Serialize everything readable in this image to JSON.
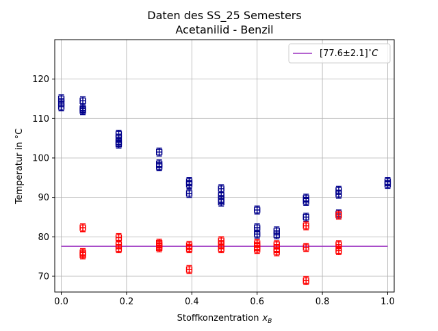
{
  "chart_data": {
    "type": "scatter",
    "title": [
      "Daten des SS_25 Semesters",
      "Acetanilid - Benzil"
    ],
    "xlabel": "Stoffkonzentration",
    "xlabel_var": "x",
    "xlabel_sub": "B",
    "ylabel": "Temperatur in °C",
    "xlim": [
      -0.02,
      1.02
    ],
    "ylim": [
      66,
      130
    ],
    "xticks": [
      0.0,
      0.2,
      0.4,
      0.6,
      0.8,
      1.0
    ],
    "xtick_labels": [
      "0.0",
      "0.2",
      "0.4",
      "0.6",
      "0.8",
      "1.0"
    ],
    "yticks": [
      70,
      80,
      90,
      100,
      110,
      120
    ],
    "ytick_labels": [
      "70",
      "80",
      "90",
      "100",
      "110",
      "120"
    ],
    "grid": true,
    "legend_position": "top-right",
    "colors": {
      "upper": "#00008b",
      "lower": "#ff0000",
      "line": "#9b30c0",
      "grid": "#b0b0b0"
    },
    "xerr": 0.008,
    "yerr": 1.0,
    "series": [
      {
        "key": "upper",
        "points": [
          {
            "x": 0.0,
            "y": 115.0
          },
          {
            "x": 0.0,
            "y": 114.0
          },
          {
            "x": 0.0,
            "y": 113.0
          },
          {
            "x": 0.066,
            "y": 114.5
          },
          {
            "x": 0.066,
            "y": 112.5
          },
          {
            "x": 0.066,
            "y": 112.0
          },
          {
            "x": 0.176,
            "y": 106.0
          },
          {
            "x": 0.176,
            "y": 105.0
          },
          {
            "x": 0.176,
            "y": 104.0
          },
          {
            "x": 0.176,
            "y": 103.5
          },
          {
            "x": 0.3,
            "y": 101.5
          },
          {
            "x": 0.3,
            "y": 98.5
          },
          {
            "x": 0.3,
            "y": 97.8
          },
          {
            "x": 0.392,
            "y": 94.0
          },
          {
            "x": 0.392,
            "y": 93.3
          },
          {
            "x": 0.392,
            "y": 91.0
          },
          {
            "x": 0.49,
            "y": 92.2
          },
          {
            "x": 0.49,
            "y": 90.5
          },
          {
            "x": 0.49,
            "y": 89.5
          },
          {
            "x": 0.49,
            "y": 88.8
          },
          {
            "x": 0.6,
            "y": 86.8
          },
          {
            "x": 0.6,
            "y": 82.3
          },
          {
            "x": 0.6,
            "y": 80.7
          },
          {
            "x": 0.66,
            "y": 81.5
          },
          {
            "x": 0.66,
            "y": 80.5
          },
          {
            "x": 0.75,
            "y": 89.8
          },
          {
            "x": 0.75,
            "y": 89.0
          },
          {
            "x": 0.75,
            "y": 85.0
          },
          {
            "x": 0.85,
            "y": 91.8
          },
          {
            "x": 0.85,
            "y": 90.8
          },
          {
            "x": 0.85,
            "y": 85.8
          },
          {
            "x": 1.0,
            "y": 94.0
          },
          {
            "x": 1.0,
            "y": 93.3
          }
        ]
      },
      {
        "key": "lower",
        "points": [
          {
            "x": 0.066,
            "y": 82.3
          },
          {
            "x": 0.066,
            "y": 76.0
          },
          {
            "x": 0.066,
            "y": 75.4
          },
          {
            "x": 0.176,
            "y": 79.8
          },
          {
            "x": 0.176,
            "y": 78.0
          },
          {
            "x": 0.176,
            "y": 77.0
          },
          {
            "x": 0.3,
            "y": 78.4
          },
          {
            "x": 0.3,
            "y": 77.8
          },
          {
            "x": 0.3,
            "y": 77.2
          },
          {
            "x": 0.392,
            "y": 77.8
          },
          {
            "x": 0.392,
            "y": 77.0
          },
          {
            "x": 0.392,
            "y": 71.7
          },
          {
            "x": 0.49,
            "y": 79.0
          },
          {
            "x": 0.49,
            "y": 78.0
          },
          {
            "x": 0.49,
            "y": 77.0
          },
          {
            "x": 0.6,
            "y": 78.3
          },
          {
            "x": 0.6,
            "y": 77.5
          },
          {
            "x": 0.6,
            "y": 76.8
          },
          {
            "x": 0.66,
            "y": 78.0
          },
          {
            "x": 0.66,
            "y": 77.0
          },
          {
            "x": 0.66,
            "y": 76.2
          },
          {
            "x": 0.75,
            "y": 82.8
          },
          {
            "x": 0.75,
            "y": 77.3
          },
          {
            "x": 0.75,
            "y": 68.9
          },
          {
            "x": 0.85,
            "y": 85.5
          },
          {
            "x": 0.85,
            "y": 78.0
          },
          {
            "x": 0.85,
            "y": 76.5
          }
        ]
      }
    ],
    "hline": {
      "y": 77.6,
      "label": "[77.6±2.1]°C",
      "label_prefix": "[77.6±2.1]",
      "label_suffix": "C",
      "label_degree": "∘",
      "xrange": [
        0.0,
        1.0
      ]
    }
  }
}
